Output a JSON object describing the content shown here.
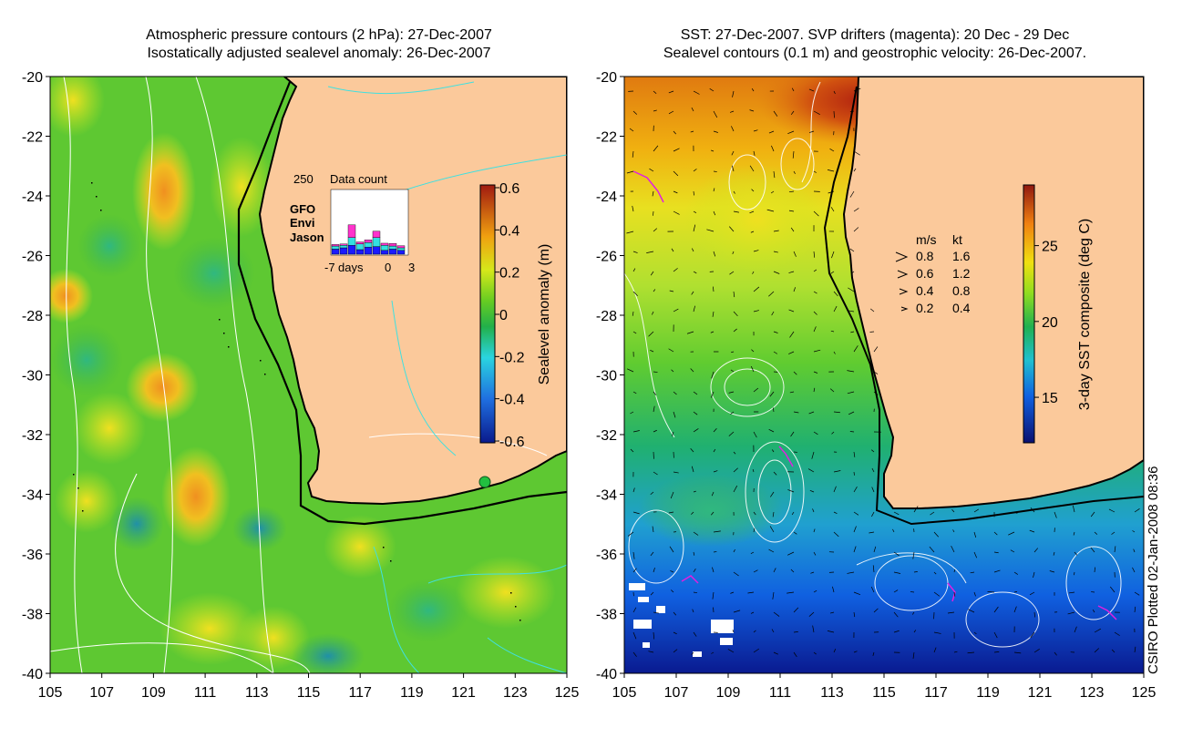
{
  "left_panel": {
    "title_line1": "Atmospheric pressure contours (2 hPa): 27-Dec-2007",
    "title_line2": "Isostatically adjusted sealevel anomaly: 26-Dec-2007",
    "colorbar": {
      "label": "Sealevel anomaly (m)",
      "ticks": [
        "0.6",
        "0.4",
        "0.2",
        "0",
        "-0.2",
        "-0.4",
        "-0.6"
      ],
      "range": [
        -0.6,
        0.6
      ]
    },
    "inset": {
      "title": "Data count",
      "max_label": "250",
      "legend": [
        {
          "name": "GFO",
          "color": "#ff33cc"
        },
        {
          "name": "Envi",
          "color": "#33e0e0"
        },
        {
          "name": "Jason",
          "color": "#1a1aff"
        }
      ],
      "x_labels": [
        "-7",
        "days",
        "0",
        "3"
      ],
      "bars": [
        {
          "jason": 20,
          "envi": 12,
          "gfo": 6
        },
        {
          "jason": 25,
          "envi": 10,
          "gfo": 5
        },
        {
          "jason": 35,
          "envi": 30,
          "gfo": 50
        },
        {
          "jason": 18,
          "envi": 22,
          "gfo": 8
        },
        {
          "jason": 28,
          "envi": 18,
          "gfo": 10
        },
        {
          "jason": 30,
          "envi": 35,
          "gfo": 25
        },
        {
          "jason": 15,
          "envi": 20,
          "gfo": 8
        },
        {
          "jason": 20,
          "envi": 12,
          "gfo": 10
        },
        {
          "jason": 15,
          "envi": 10,
          "gfo": 8
        }
      ]
    }
  },
  "right_panel": {
    "title_line1": "SST: 27-Dec-2007. SVP drifters (magenta): 20 Dec - 29 Dec",
    "title_line2": "Sealevel contours (0.1 m) and geostrophic velocity: 26-Dec-2007.",
    "colorbar": {
      "label": "3-day SST composite (deg C)",
      "ticks": [
        "25",
        "20",
        "15"
      ],
      "range": [
        12,
        29
      ]
    },
    "speed_legend": {
      "header_ms": "m/s",
      "header_kt": "kt",
      "rows": [
        {
          "ms": "0.8",
          "kt": "1.6"
        },
        {
          "ms": "0.6",
          "kt": "1.2"
        },
        {
          "ms": "0.4",
          "kt": "0.8"
        },
        {
          "ms": "0.2",
          "kt": "0.4"
        }
      ]
    }
  },
  "axes": {
    "lat_labels": [
      "-20",
      "-22",
      "-24",
      "-26",
      "-28",
      "-30",
      "-32",
      "-34",
      "-36",
      "-38",
      "-40"
    ],
    "lon_labels": [
      "105",
      "107",
      "109",
      "111",
      "113",
      "115",
      "117",
      "119",
      "121",
      "123",
      "125"
    ]
  },
  "credit": "CSIRO Plotted 02-Jan-2008 08:36",
  "colors": {
    "land": "#fbc99b",
    "coast": "#000000",
    "pressure_contour": "#ffffff",
    "sealevel_contour": "#40e0e0"
  }
}
